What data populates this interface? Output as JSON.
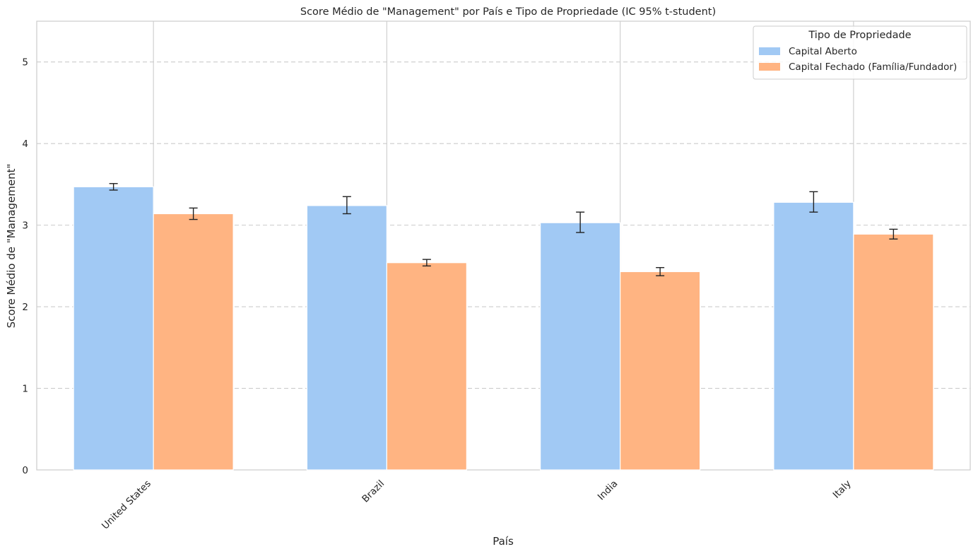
{
  "chart_data": {
    "type": "bar",
    "title": "Score Médio de \"Management\" por País e Tipo de Propriedade (IC 95% t-student)",
    "xlabel": "País",
    "ylabel": "Score Médio de \"Management\"",
    "categories": [
      "United States",
      "Brazil",
      "India",
      "Italy"
    ],
    "yticks": [
      "0",
      "1",
      "2",
      "3",
      "4",
      "5"
    ],
    "ylim": [
      0,
      5.5
    ],
    "grid": true,
    "legend": {
      "title": "Tipo de Propriedade",
      "placement": "top-right"
    },
    "series": [
      {
        "name": "Capital Aberto",
        "color": "#a1c9f4",
        "values": [
          3.47,
          3.24,
          3.03,
          3.28
        ],
        "ci_low": [
          3.43,
          3.14,
          2.91,
          3.16
        ],
        "ci_high": [
          3.51,
          3.35,
          3.16,
          3.41
        ]
      },
      {
        "name": "Capital Fechado (Família/Fundador)",
        "color": "#ffb482",
        "values": [
          3.14,
          2.54,
          2.43,
          2.89
        ],
        "ci_low": [
          3.07,
          2.5,
          2.38,
          2.83
        ],
        "ci_high": [
          3.21,
          2.58,
          2.48,
          2.95
        ]
      }
    ]
  }
}
